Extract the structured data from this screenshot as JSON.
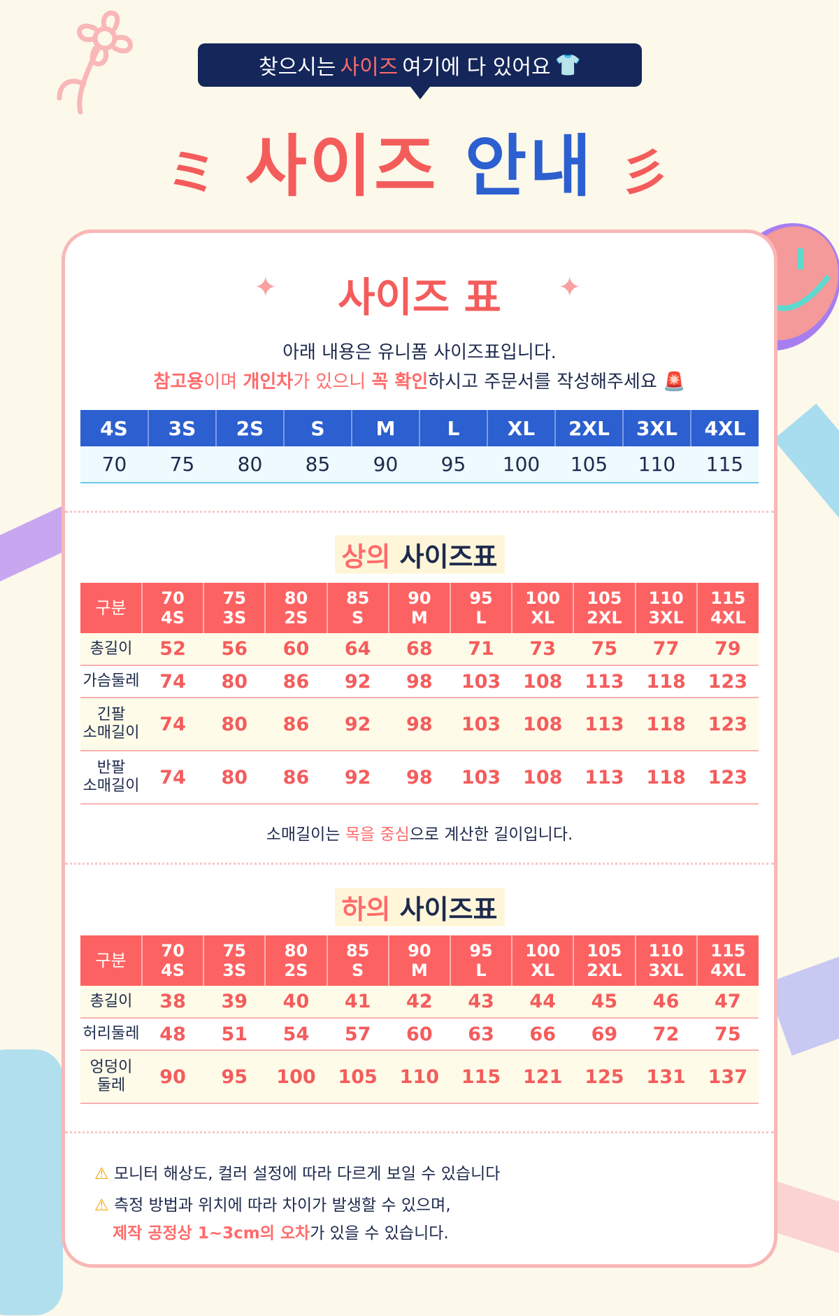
{
  "header": {
    "bubble_pre": "찾으시는 ",
    "bubble_hl": "사이즈",
    "bubble_post": " 여기에 다 있어요",
    "title_a": "사이즈",
    "title_b": "안내"
  },
  "card": {
    "title": "사이즈 표",
    "intro1": "아래 내용은 유니폼 사이즈표입니다.",
    "intro2_hl1": "참고용",
    "intro2_t1": "이며 ",
    "intro2_hl2": "개인차",
    "intro2_t2": "가 있으니 ",
    "intro2_hl3": "꼭 확인",
    "intro2_t3": "하시고 주문서를 작성해주세요"
  },
  "size_table": {
    "labels": [
      "4S",
      "3S",
      "2S",
      "S",
      "M",
      "L",
      "XL",
      "2XL",
      "3XL",
      "4XL"
    ],
    "values": [
      "70",
      "75",
      "80",
      "85",
      "90",
      "95",
      "100",
      "105",
      "110",
      "115"
    ]
  },
  "top": {
    "title_hl": "상의",
    "title": " 사이즈표",
    "header": "구분",
    "rows": [
      {
        "label": "총길이",
        "values": [
          "52",
          "56",
          "60",
          "64",
          "68",
          "71",
          "73",
          "75",
          "77",
          "79"
        ]
      },
      {
        "label": "가슴둘레",
        "values": [
          "74",
          "80",
          "86",
          "92",
          "98",
          "103",
          "108",
          "113",
          "118",
          "123"
        ]
      },
      {
        "label": "긴팔\n소매길이",
        "values": [
          "74",
          "80",
          "86",
          "92",
          "98",
          "103",
          "108",
          "113",
          "118",
          "123"
        ]
      },
      {
        "label": "반팔\n소매길이",
        "values": [
          "74",
          "80",
          "86",
          "92",
          "98",
          "103",
          "108",
          "113",
          "118",
          "123"
        ]
      }
    ],
    "note_pre": "소매길이는 ",
    "note_hl": "목을 중심",
    "note_post": "으로 계산한 길이입니다."
  },
  "bottom": {
    "title_hl": "하의",
    "title": " 사이즈표",
    "header": "구분",
    "rows": [
      {
        "label": "총길이",
        "values": [
          "38",
          "39",
          "40",
          "41",
          "42",
          "43",
          "44",
          "45",
          "46",
          "47"
        ]
      },
      {
        "label": "허리둘레",
        "values": [
          "48",
          "51",
          "54",
          "57",
          "60",
          "63",
          "66",
          "69",
          "72",
          "75"
        ]
      },
      {
        "label": "엉덩이\n둘레",
        "values": [
          "90",
          "95",
          "100",
          "105",
          "110",
          "115",
          "121",
          "125",
          "131",
          "137"
        ]
      }
    ]
  },
  "notes": {
    "n1": "모니터 해상도, 컬러 설정에 따라 다르게 보일 수 있습니다",
    "n2": "측정 방법과 위치에 따라 차이가 발생할 수 있으며,",
    "n3_hl": "제작 공정상 1~3cm의 오차",
    "n3_post": "가 있을 수 있습니다."
  },
  "colors": {
    "coral": "#f45c5c",
    "blue": "#2c5fcf",
    "navy": "#14265a",
    "cream": "#fcf8ea"
  }
}
